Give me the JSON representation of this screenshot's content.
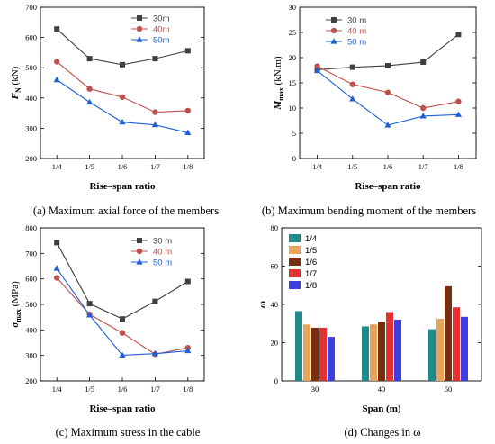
{
  "chart_data": [
    {
      "type": "line",
      "ylabel_main": "F",
      "ylabel_sub": "N",
      "ylabel_unit": " (kN)",
      "xlabel": "Rise–span ratio",
      "categories": [
        "1/4",
        "1/5",
        "1/6",
        "1/7",
        "1/8"
      ],
      "ylim": [
        200,
        700
      ],
      "yticks": [
        200,
        300,
        400,
        500,
        600,
        700
      ],
      "series": [
        {
          "name": "30m",
          "color": "#404040",
          "marker": "square",
          "values": [
            628,
            530,
            510,
            530,
            556
          ]
        },
        {
          "name": "40m",
          "color": "#c0504d",
          "marker": "circle",
          "values": [
            520,
            430,
            403,
            353,
            358
          ]
        },
        {
          "name": "50m",
          "color": "#1f5fd6",
          "marker": "triangle",
          "values": [
            460,
            386,
            320,
            311,
            285
          ]
        }
      ],
      "legend": "top-right",
      "caption": "(a) Maximum axial force of the members"
    },
    {
      "type": "line",
      "ylabel_main": "M",
      "ylabel_sub": "max",
      "ylabel_unit": " (kN.m)",
      "xlabel": "Rise–span ratio",
      "categories": [
        "1/4",
        "1/5",
        "1/6",
        "1/7",
        "1/8"
      ],
      "ylim": [
        0,
        30
      ],
      "yticks": [
        0,
        5,
        10,
        15,
        20,
        25,
        30
      ],
      "series": [
        {
          "name": "30 m",
          "color": "#404040",
          "marker": "square",
          "values": [
            17.6,
            18.1,
            18.4,
            19.1,
            24.6
          ]
        },
        {
          "name": "40 m",
          "color": "#c0504d",
          "marker": "circle",
          "values": [
            18.3,
            14.7,
            13.1,
            10.0,
            11.3
          ]
        },
        {
          "name": "50 m",
          "color": "#1f5fd6",
          "marker": "triangle",
          "values": [
            17.4,
            11.8,
            6.6,
            8.4,
            8.7
          ]
        }
      ],
      "legend": "top-right",
      "caption": "(b) Maximum bending moment of the members"
    },
    {
      "type": "line",
      "ylabel_main": "σ",
      "ylabel_sub": "max",
      "ylabel_unit": " (MPa)",
      "xlabel": "Rise–span ratio",
      "categories": [
        "1/4",
        "1/5",
        "1/6",
        "1/7",
        "1/8"
      ],
      "ylim": [
        200,
        800
      ],
      "yticks": [
        200,
        300,
        400,
        500,
        600,
        700,
        800
      ],
      "series": [
        {
          "name": "30 m",
          "color": "#404040",
          "marker": "square",
          "values": [
            742,
            503,
            443,
            512,
            590
          ]
        },
        {
          "name": "40 m",
          "color": "#c0504d",
          "marker": "circle",
          "values": [
            604,
            461,
            388,
            305,
            330
          ]
        },
        {
          "name": "50 m",
          "color": "#1f5fd6",
          "marker": "triangle",
          "values": [
            641,
            458,
            301,
            307,
            318
          ]
        }
      ],
      "legend": "top-right",
      "caption": "(c) Maximum stress in the cable"
    },
    {
      "type": "bar",
      "ylabel_main": "ω",
      "xlabel": "Span (m)",
      "categories": [
        "30",
        "40",
        "50"
      ],
      "ylim": [
        0,
        80
      ],
      "yticks": [
        0,
        20,
        40,
        60,
        80
      ],
      "series": [
        {
          "name": "1/4",
          "color": "#1f8a8a",
          "values": [
            36.5,
            28.5,
            27.0
          ]
        },
        {
          "name": "1/5",
          "color": "#e6a35c",
          "values": [
            29.5,
            29.5,
            32.5
          ]
        },
        {
          "name": "1/6",
          "color": "#7a2e10",
          "values": [
            27.8,
            31.0,
            49.5
          ]
        },
        {
          "name": "1/7",
          "color": "#e2312f",
          "values": [
            27.8,
            36.0,
            38.5
          ]
        },
        {
          "name": "1/8",
          "color": "#3d3de0",
          "values": [
            23.0,
            32.0,
            33.5
          ]
        }
      ],
      "legend": "top-left",
      "caption": "(d) Changes in ω"
    }
  ]
}
